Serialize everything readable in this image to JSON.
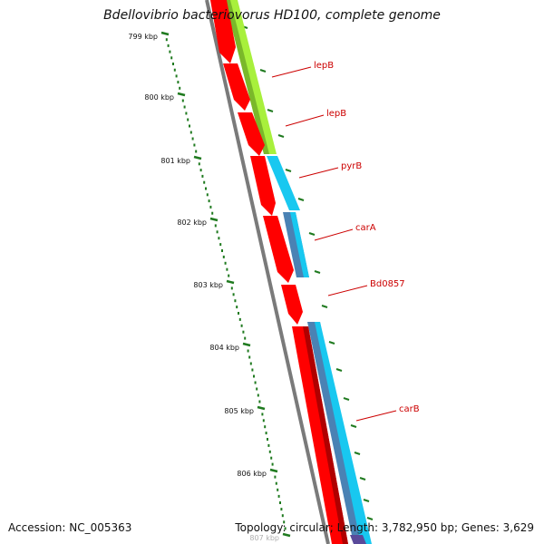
{
  "title": "Bdellovibrio bacteriovorus HD100, complete genome",
  "footer": {
    "accession": "Accession: NC_005363",
    "summary": "Topology: circular; Length: 3,782,950 bp; Genes: 3,629"
  },
  "ruler": {
    "labels": [
      "799 kbp",
      "800 kbp",
      "801 kbp",
      "802 kbp",
      "803 kbp",
      "804 kbp",
      "805 kbp",
      "806 kbp",
      "807 kbp"
    ]
  },
  "genes": [
    {
      "name": "lepB"
    },
    {
      "name": "lepB"
    },
    {
      "name": "pyrB"
    },
    {
      "name": "carA"
    },
    {
      "name": "Bd0857"
    },
    {
      "name": "carB"
    }
  ],
  "colors": {
    "backbone": "#7a7a7a",
    "cds": "#ff0000",
    "cds_dark": "#b00000",
    "ruler": "#1f7a1f",
    "label": "#cc0000",
    "green_track": "#a8f03c",
    "cyan_track": "#18c8f0",
    "steel_track": "#4a82b4",
    "purple_track": "#5a4a9a"
  }
}
